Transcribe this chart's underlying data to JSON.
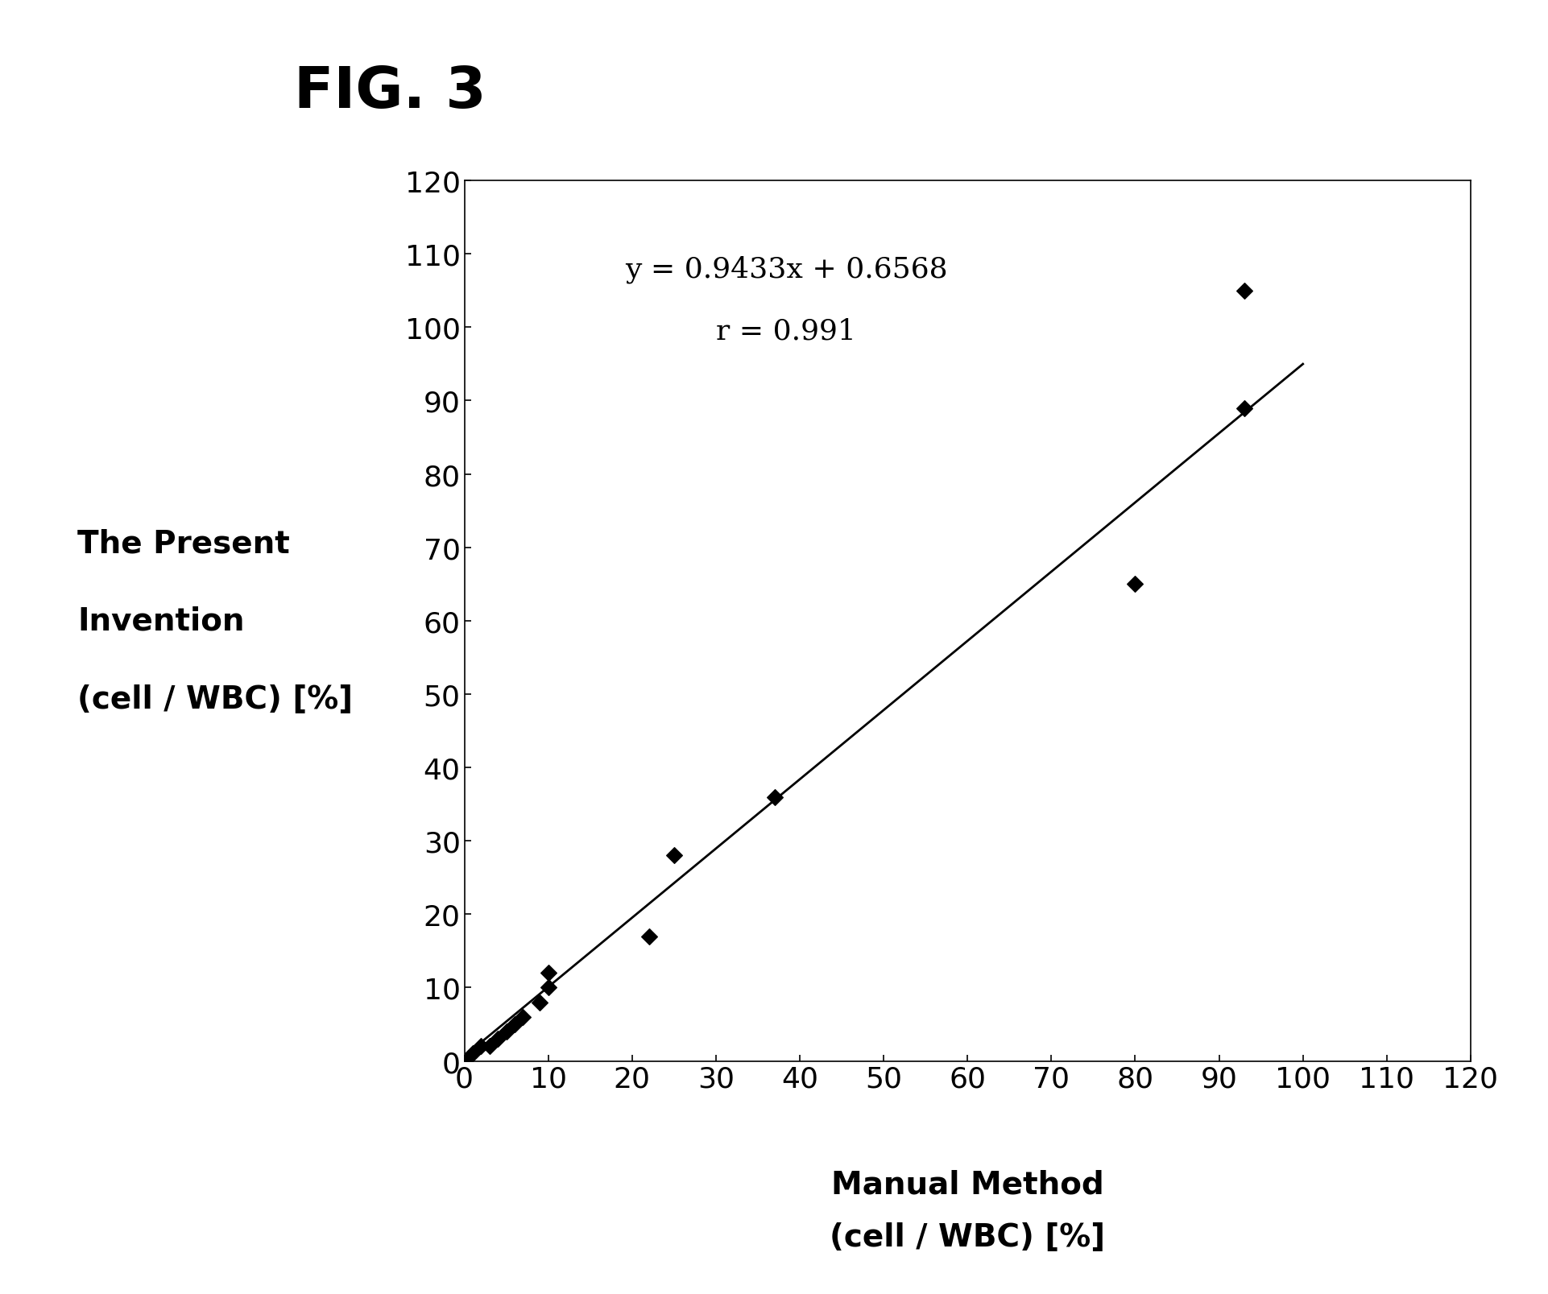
{
  "title": "FIG. 3",
  "xlabel_line1": "Manual Method",
  "xlabel_line2": "(cell / WBC) [%]",
  "ylabel_line1": "The Present",
  "ylabel_line2": "Invention",
  "ylabel_line3": "(cell / WBC) [%]",
  "equation_text": "y = 0.9433x + 0.6568",
  "r_text": "r = 0.991",
  "slope": 0.9433,
  "intercept": 0.6568,
  "x_data": [
    0,
    1,
    2,
    3,
    4,
    5,
    6,
    7,
    9,
    10,
    10,
    22,
    25,
    37,
    80,
    93
  ],
  "y_data": [
    0,
    1,
    2,
    2,
    3,
    4,
    5,
    6,
    8,
    10,
    12,
    17,
    28,
    36,
    65,
    89
  ],
  "outlier_x": 93,
  "outlier_y": 105,
  "xlim": [
    0,
    120
  ],
  "ylim": [
    0,
    120
  ],
  "xticks": [
    0,
    10,
    20,
    30,
    40,
    50,
    60,
    70,
    80,
    90,
    100,
    110,
    120
  ],
  "yticks": [
    0,
    10,
    20,
    30,
    40,
    50,
    60,
    70,
    80,
    90,
    100,
    110,
    120
  ],
  "marker_color": "#000000",
  "line_color": "#000000",
  "background_color": "#ffffff",
  "title_fontsize": 52,
  "axis_label_fontsize": 28,
  "tick_fontsize": 26,
  "annotation_fontsize": 26
}
